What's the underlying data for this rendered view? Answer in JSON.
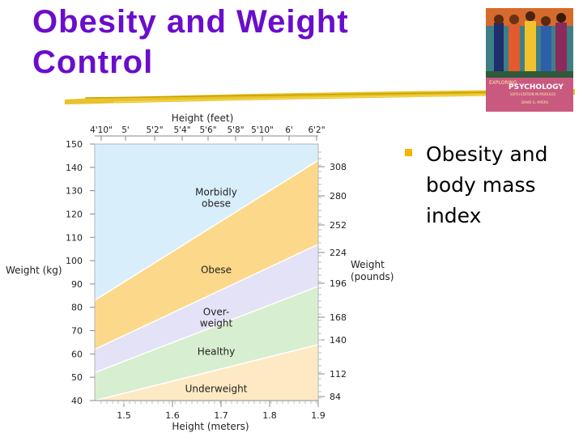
{
  "slide": {
    "title_line1": "Obesity and Weight",
    "title_line2": "Control",
    "bullet": "Obesity and body mass index"
  },
  "book_cover": {
    "series": "EXPLORING",
    "title": "PSYCHOLOGY",
    "subtitle": "SIXTH EDITION IN MODULES",
    "author": "DAVID G. MYERS"
  },
  "colors": {
    "title": "#6a0dcc",
    "bullet": "#f4b400",
    "morbidly_obese": "#d9eefb",
    "obese": "#fcd98a",
    "overweight": "#e4e2f6",
    "healthy": "#d8eed0",
    "underweight": "#fde9c4"
  },
  "chart_data": {
    "type": "area",
    "top_axis_label": "Height (feet)",
    "top_ticks": [
      "4'10\"",
      "5'",
      "5'2\"",
      "5'4\"",
      "5'6\"",
      "5'8\"",
      "5'10\"",
      "6'",
      "6'2\""
    ],
    "xlabel": "Height (meters)",
    "x_ticks": [
      1.5,
      1.6,
      1.7,
      1.8,
      1.9
    ],
    "xlim": [
      1.44,
      1.9
    ],
    "ylabel": "Weight (kg)",
    "y_ticks": [
      40,
      50,
      60,
      70,
      80,
      90,
      100,
      110,
      120,
      130,
      140,
      150
    ],
    "ylim": [
      40,
      150
    ],
    "right_axis_label": "Weight (pounds)",
    "right_ticks": [
      84,
      112,
      140,
      168,
      196,
      224,
      252,
      280,
      308
    ],
    "x": [
      1.44,
      1.9
    ],
    "boundaries": [
      {
        "name": "underweight/healthy",
        "values": [
          38.5,
          64.0
        ]
      },
      {
        "name": "healthy/overweight",
        "values": [
          52.0,
          89.0
        ]
      },
      {
        "name": "overweight/obese",
        "values": [
          62.0,
          107.0
        ]
      },
      {
        "name": "obese/morbidly obese",
        "values": [
          83.0,
          143.0
        ]
      }
    ],
    "regions": [
      {
        "name": "Underweight",
        "label": "Underweight",
        "label_at": [
          1.69,
          45
        ]
      },
      {
        "name": "Healthy",
        "label": "Healthy",
        "label_at": [
          1.69,
          61
        ]
      },
      {
        "name": "Overweight",
        "label": "Over-\nweight",
        "label_at": [
          1.69,
          75.5
        ]
      },
      {
        "name": "Obese",
        "label": "Obese",
        "label_at": [
          1.69,
          96
        ]
      },
      {
        "name": "Morbidly obese",
        "label": "Morbidly\nobese",
        "label_at": [
          1.69,
          127
        ]
      }
    ]
  }
}
